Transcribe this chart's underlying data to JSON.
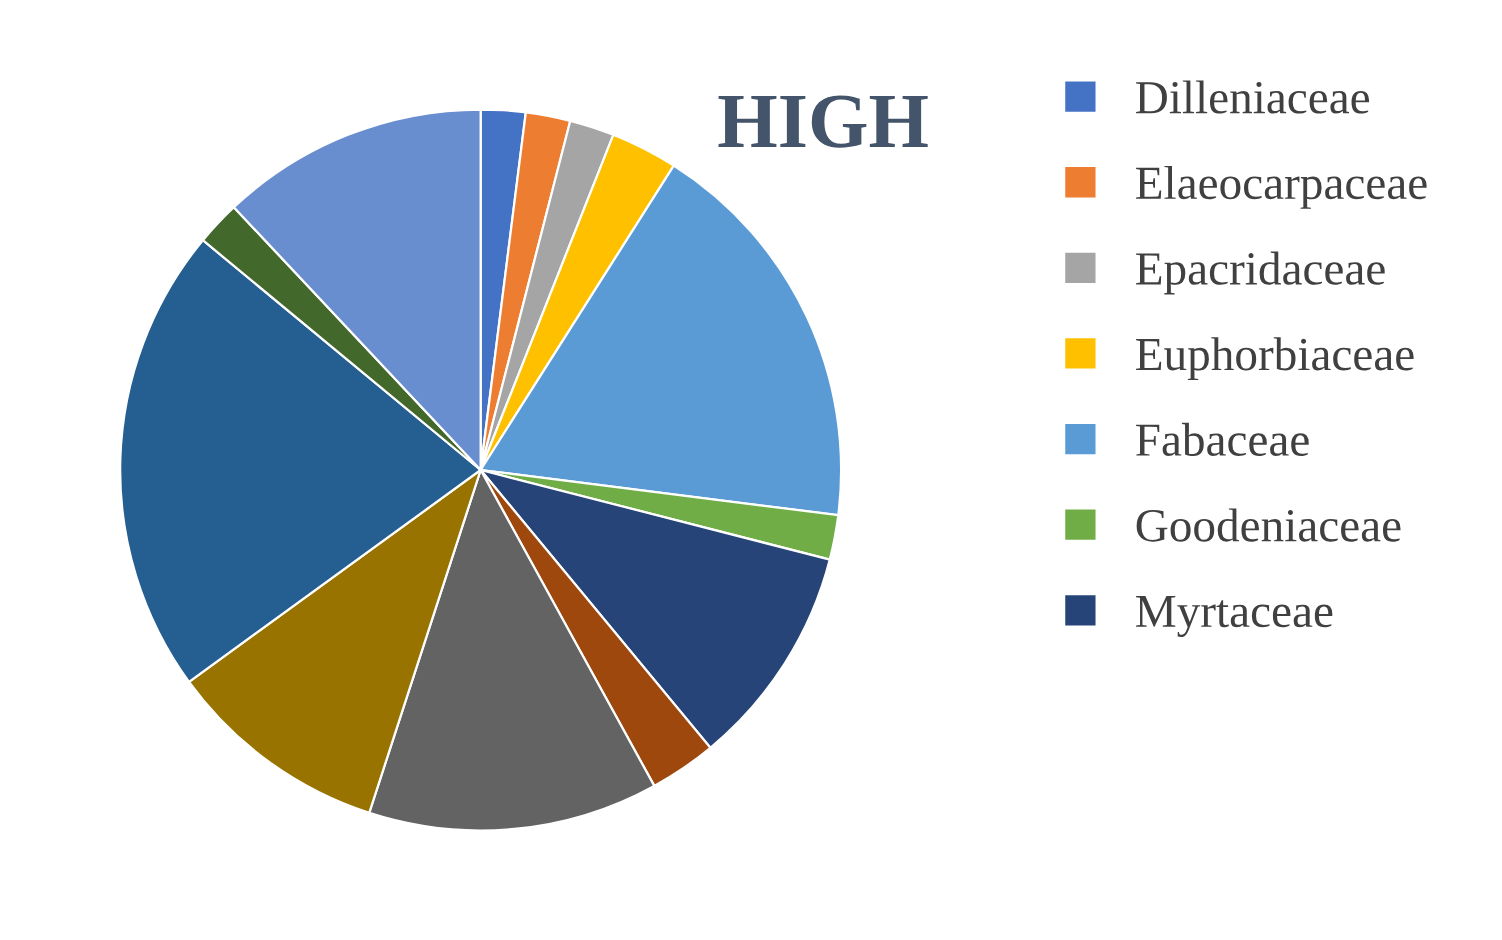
{
  "chart_data": {
    "type": "pie",
    "title": "HIGH",
    "categories": [
      "Dilleniaceae",
      "Elaeocarpaceae",
      "Epacridaceae",
      "Euphorbiaceae",
      "Fabaceae",
      "Goodeniaceae",
      "Myrtaceae",
      null,
      null,
      null,
      null,
      null,
      null
    ],
    "values": [
      2,
      2,
      2,
      3,
      18,
      2,
      10,
      3,
      13,
      10,
      21,
      2,
      12
    ],
    "colors": [
      "#4472c4",
      "#ed7d31",
      "#a5a5a5",
      "#ffc000",
      "#5b9bd5",
      "#70ad47",
      "#264478",
      "#9e480e",
      "#636363",
      "#997300",
      "#255e91",
      "#43682b",
      "#698ed0"
    ],
    "legend": "right"
  }
}
